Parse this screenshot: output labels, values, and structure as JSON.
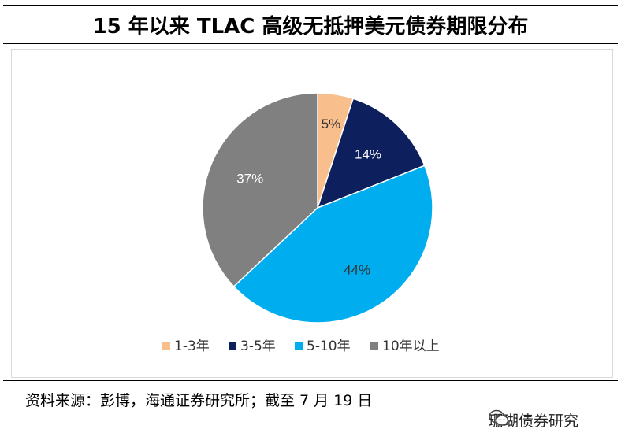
{
  "header": {
    "title": "15 年以来 TLAC 高级无抵押美元债券期限分布"
  },
  "chart_data": {
    "type": "pie",
    "title": "15 年以来 TLAC 高级无抵押美元债券期限分布",
    "categories": [
      "1-3年",
      "3-5年",
      "5-10年",
      "10年以上"
    ],
    "values": [
      5,
      14,
      44,
      37
    ],
    "labels": [
      "5%",
      "14%",
      "44%",
      "37%"
    ],
    "colors": [
      "#F8BE8C",
      "#0D1F5C",
      "#00AEEF",
      "#808080"
    ],
    "label_colors": [
      "#333333",
      "#ffffff",
      "#333333",
      "#ffffff"
    ],
    "legend": "bottom"
  },
  "footer": {
    "source": "资料来源：彭博，海通证券研究所；截至 7 月 19 日",
    "watermark": "珊瑚债券研究",
    "watermark_icon": "wechat-icon"
  }
}
